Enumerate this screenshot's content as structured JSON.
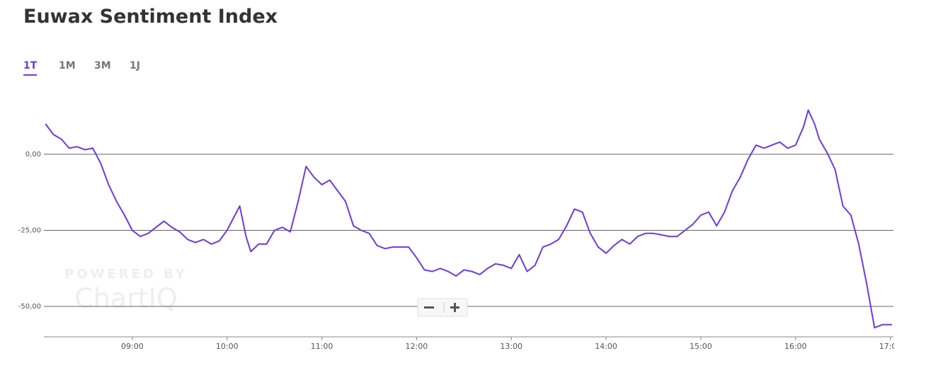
{
  "periods": [
    "1T",
    "1M",
    "3M",
    "1J"
  ],
  "active_period": "1T",
  "watermark": {
    "line1": "POWERED BY",
    "line2": "ChartIQ"
  },
  "chart_data": {
    "type": "line",
    "title": "Euwax Sentiment Index",
    "x": [
      "08:05",
      "08:10",
      "08:15",
      "08:20",
      "08:25",
      "08:30",
      "08:35",
      "08:40",
      "08:45",
      "08:50",
      "08:55",
      "09:00",
      "09:05",
      "09:10",
      "09:15",
      "09:20",
      "09:25",
      "09:30",
      "09:35",
      "09:40",
      "09:45",
      "09:50",
      "09:55",
      "10:00",
      "10:05",
      "10:08",
      "10:12",
      "10:15",
      "10:20",
      "10:25",
      "10:30",
      "10:35",
      "10:40",
      "10:45",
      "10:50",
      "10:55",
      "11:00",
      "11:05",
      "11:10",
      "11:15",
      "11:20",
      "11:25",
      "11:30",
      "11:35",
      "11:40",
      "11:45",
      "11:50",
      "11:55",
      "12:00",
      "12:05",
      "12:10",
      "12:15",
      "12:20",
      "12:25",
      "12:30",
      "12:35",
      "12:40",
      "12:45",
      "12:50",
      "12:55",
      "13:00",
      "13:05",
      "13:10",
      "13:15",
      "13:20",
      "13:25",
      "13:30",
      "13:35",
      "13:40",
      "13:45",
      "13:50",
      "13:55",
      "14:00",
      "14:05",
      "14:10",
      "14:15",
      "14:20",
      "14:25",
      "14:30",
      "14:35",
      "14:40",
      "14:45",
      "14:50",
      "14:55",
      "15:00",
      "15:05",
      "15:10",
      "15:15",
      "15:20",
      "15:25",
      "15:30",
      "15:35",
      "15:40",
      "15:45",
      "15:50",
      "15:55",
      "16:00",
      "16:05",
      "16:08",
      "16:12",
      "16:15",
      "16:20",
      "16:25",
      "16:30",
      "16:35",
      "16:40",
      "16:45",
      "16:50",
      "16:55",
      "17:01"
    ],
    "series": [
      {
        "name": "Euwax Sentiment Index",
        "color": "#6b3be6",
        "values": [
          10,
          6.5,
          5,
          2,
          2.5,
          1.5,
          2,
          -3,
          -10,
          -15.5,
          -20,
          -25,
          -27,
          -26,
          -24,
          -22,
          -24,
          -25.5,
          -28,
          -29,
          -28,
          -29.5,
          -28.5,
          -25,
          -20,
          -17,
          -27,
          -32,
          -29.5,
          -29.5,
          -25,
          -24,
          -25.5,
          -15.5,
          -4,
          -7.5,
          -10,
          -8.5,
          -12,
          -15.5,
          -23.5,
          -25,
          -26,
          -30,
          -31,
          -30.5,
          -30.5,
          -30.5,
          -34,
          -38,
          -38.5,
          -37.5,
          -38.5,
          -40,
          -38,
          -38.5,
          -39.5,
          -37.5,
          -36,
          -36.5,
          -37.5,
          -33,
          -38.5,
          -36.5,
          -30.5,
          -29.5,
          -28,
          -23.5,
          -18,
          -19,
          -26,
          -30.5,
          -32.5,
          -30,
          -28,
          -29.5,
          -27,
          -26,
          -26,
          -26.5,
          -27,
          -27,
          -25,
          -23,
          -20,
          -19,
          -23.5,
          -19,
          -12,
          -7.5,
          -1.5,
          3,
          2,
          3,
          4,
          2,
          3,
          9,
          14.5,
          10,
          5,
          0.5,
          -5,
          -17,
          -20,
          -29.5,
          -42.5,
          -57,
          -56,
          -56
        ]
      }
    ],
    "xlim": [
      "08:04",
      "17:02"
    ],
    "xticks": [
      "09:00",
      "10:00",
      "11:00",
      "12:00",
      "13:00",
      "14:00",
      "15:00",
      "16:00",
      "17:00"
    ],
    "ylim": [
      -60,
      20
    ],
    "yticks": [
      {
        "value": 0,
        "label": "0,00"
      },
      {
        "value": -25,
        "label": "-25,00"
      },
      {
        "value": -50,
        "label": "-50,00"
      }
    ],
    "grid": true
  }
}
